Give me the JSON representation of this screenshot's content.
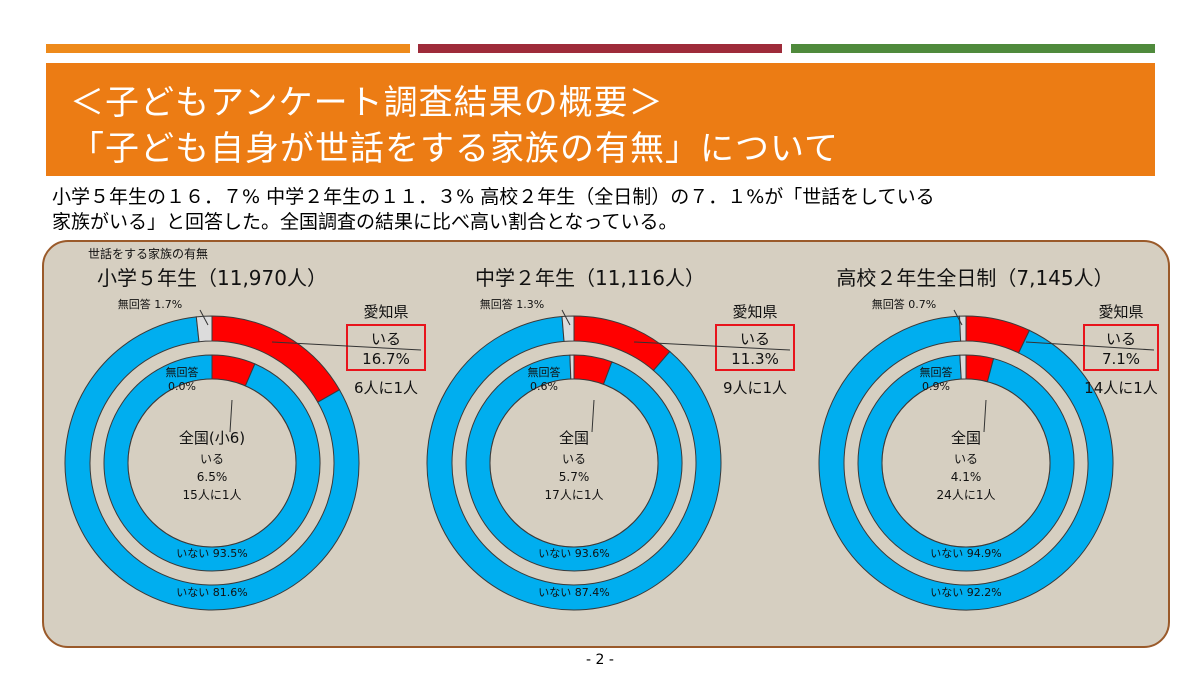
{
  "title": {
    "line1": "＜子どもアンケート調査結果の概要＞",
    "line2": "「子ども自身が世話をする家族の有無」について"
  },
  "summary": {
    "line1": "小学５年生の１６．７% 中学２年生の１１．３% 高校２年生（全日制）の７．１%が「世話をしている",
    "line2": "家族がいる」と回答した。全国調査の結果に比べ高い割合となっている。"
  },
  "panel_title": "世話をする家族の有無",
  "page_number": "- 2 -",
  "colors": {
    "iru": "#ff0000",
    "inai": "#00aeef",
    "mukaito": "#dcdcdc",
    "box": "#e8141c",
    "panel": "#d6cfc1",
    "panel_border": "#9a5a2a"
  },
  "chart_data": [
    {
      "type": "pie",
      "title": "小学５年生（11,970人）",
      "outer": {
        "series_label": "愛知県",
        "values": [
          16.7,
          81.6,
          1.7
        ],
        "labels": [
          "いる",
          "いない",
          "無回答"
        ],
        "iru_label": "いる",
        "iru_value": "16.7%",
        "ratio": "6人に1人",
        "inai_text": "いない 81.6%",
        "mukaito_text": "無回答 1.7%"
      },
      "inner": {
        "series_label": "全国(小6)",
        "values": [
          6.5,
          93.5,
          0.0
        ],
        "labels": [
          "いる",
          "いない",
          "無回答"
        ],
        "iru_label": "いる",
        "iru_value": "6.5%",
        "ratio": "15人に1人",
        "inai_text": "いない 93.5%",
        "mukaito_label": "無回答",
        "mukaito_value": "0.0%"
      }
    },
    {
      "type": "pie",
      "title": "中学２年生（11,116人）",
      "outer": {
        "series_label": "愛知県",
        "values": [
          11.3,
          87.4,
          1.3
        ],
        "labels": [
          "いる",
          "いない",
          "無回答"
        ],
        "iru_label": "いる",
        "iru_value": "11.3%",
        "ratio": "9人に1人",
        "inai_text": "いない 87.4%",
        "mukaito_text": "無回答 1.3%"
      },
      "inner": {
        "series_label": "全国",
        "values": [
          5.7,
          93.6,
          0.6
        ],
        "labels": [
          "いる",
          "いない",
          "無回答"
        ],
        "iru_label": "いる",
        "iru_value": "5.7%",
        "ratio": "17人に1人",
        "inai_text": "いない 93.6%",
        "mukaito_label": "無回答",
        "mukaito_value": "0.6%"
      }
    },
    {
      "type": "pie",
      "title": "高校２年生全日制（7,145人）",
      "outer": {
        "series_label": "愛知県",
        "values": [
          7.1,
          92.2,
          0.7
        ],
        "labels": [
          "いる",
          "いない",
          "無回答"
        ],
        "iru_label": "いる",
        "iru_value": "7.1%",
        "ratio": "14人に1人",
        "inai_text": "いない 92.2%",
        "mukaito_text": "無回答 0.7%"
      },
      "inner": {
        "series_label": "全国",
        "values": [
          4.1,
          94.9,
          0.9
        ],
        "labels": [
          "いる",
          "いない",
          "無回答"
        ],
        "iru_label": "いる",
        "iru_value": "4.1%",
        "ratio": "24人に1人",
        "inai_text": "いない 94.9%",
        "mukaito_label": "無回答",
        "mukaito_value": "0.9%"
      }
    }
  ]
}
